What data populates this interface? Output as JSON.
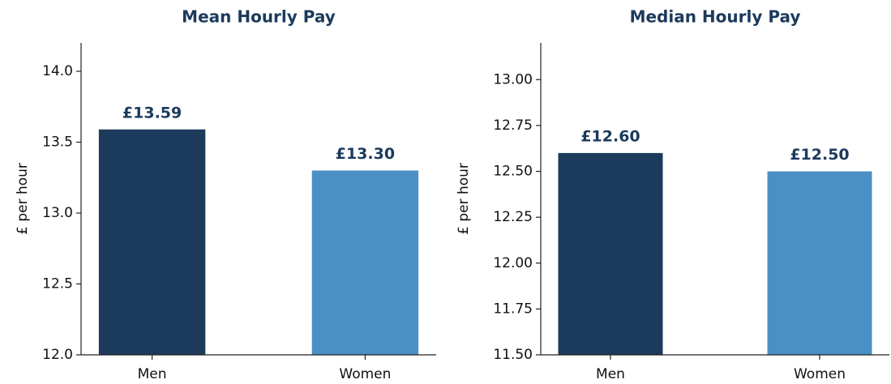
{
  "chart_data": [
    {
      "type": "bar",
      "title": "Mean Hourly Pay",
      "ylabel": "£ per hour",
      "categories": [
        "Men",
        "Women"
      ],
      "values": [
        13.59,
        13.3
      ],
      "value_labels": [
        "£13.59",
        "£13.30"
      ],
      "colors": [
        "#1b3a5c",
        "#4a90c4"
      ],
      "ylim": [
        12,
        14.2
      ],
      "yticks": [
        {
          "value": 12,
          "label": "12.0"
        },
        {
          "value": 12.5,
          "label": "12.5"
        },
        {
          "value": 13,
          "label": "13.0"
        },
        {
          "value": 13.5,
          "label": "13.5"
        },
        {
          "value": 14,
          "label": "14.0"
        }
      ],
      "grid": false
    },
    {
      "type": "bar",
      "title": "Median Hourly Pay",
      "ylabel": "£ per hour",
      "categories": [
        "Men",
        "Women"
      ],
      "values": [
        12.6,
        12.5
      ],
      "value_labels": [
        "£12.60",
        "£12.50"
      ],
      "colors": [
        "#1b3a5c",
        "#4a90c4"
      ],
      "ylim": [
        11.5,
        13.2
      ],
      "yticks": [
        {
          "value": 11.5,
          "label": "11.50"
        },
        {
          "value": 11.75,
          "label": "11.75"
        },
        {
          "value": 12,
          "label": "12.00"
        },
        {
          "value": 12.25,
          "label": "12.25"
        },
        {
          "value": 12.5,
          "label": "12.50"
        },
        {
          "value": 12.75,
          "label": "12.75"
        },
        {
          "value": 13,
          "label": "13.00"
        }
      ],
      "grid": false
    }
  ]
}
